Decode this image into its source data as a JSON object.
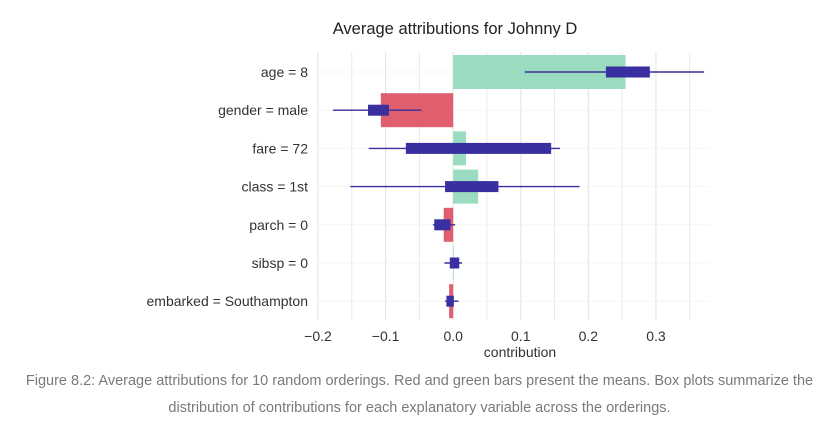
{
  "caption": "Figure 8.2: Average attributions for 10 random orderings. Red and green bars present the means. Box plots summarize the distribution of contributions for each explanatory variable across the orderings.",
  "colors": {
    "positive": "#9bdcc0",
    "negative": "#e05f6f",
    "box": "#3a2fa0",
    "grid": "#e6e6e6",
    "text": "#333333"
  },
  "chart_data": {
    "type": "bar",
    "title": "Average attributions for Johnny D",
    "xlabel": "contribution",
    "ylabel": "",
    "xlim": [
      -0.2,
      0.38
    ],
    "xticks": [
      -0.2,
      -0.1,
      0.0,
      0.1,
      0.2,
      0.3
    ],
    "xtick_labels": [
      "−0.2",
      "−0.1",
      "0.0",
      "0.1",
      "0.2",
      "0.3"
    ],
    "grid": true,
    "categories": [
      "age = 8",
      "gender = male",
      "fare = 72",
      "class = 1st",
      "parch = 0",
      "sibsp = 0",
      "embarked = Southampton"
    ],
    "means": [
      0.255,
      -0.107,
      0.019,
      0.037,
      -0.014,
      0.0,
      -0.006
    ],
    "boxplots": [
      {
        "min": 0.106,
        "q1": 0.226,
        "q3": 0.291,
        "max": 0.371
      },
      {
        "min": -0.178,
        "q1": -0.126,
        "q3": -0.095,
        "max": -0.047
      },
      {
        "min": -0.125,
        "q1": -0.07,
        "q3": 0.145,
        "max": 0.158
      },
      {
        "min": -0.152,
        "q1": -0.012,
        "q3": 0.067,
        "max": 0.187
      },
      {
        "min": -0.03,
        "q1": -0.028,
        "q3": -0.004,
        "max": 0.003
      },
      {
        "min": -0.013,
        "q1": -0.005,
        "q3": 0.009,
        "max": 0.013
      },
      {
        "min": -0.012,
        "q1": -0.01,
        "q3": 0.001,
        "max": 0.008
      }
    ]
  }
}
